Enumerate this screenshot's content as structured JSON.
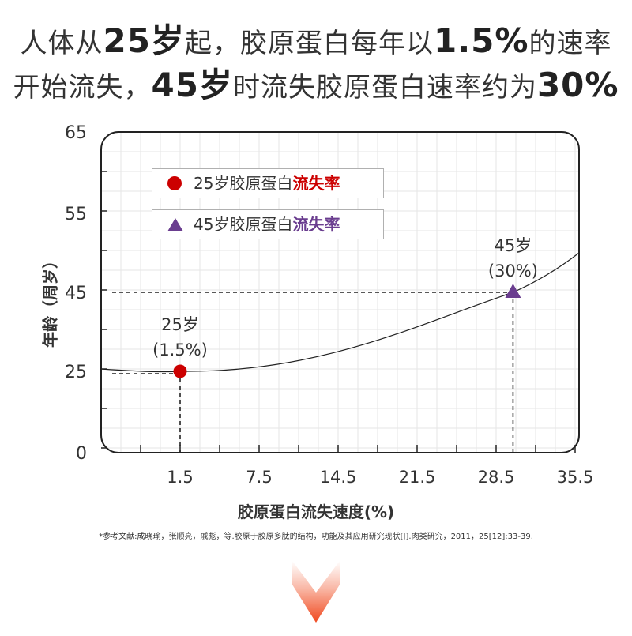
{
  "headline": {
    "line1": [
      "人体从",
      "25岁",
      "起，胶原蛋白每年以",
      "1.5%",
      "的速率"
    ],
    "line2": [
      "开始流失，",
      "45岁",
      "时流失胶原蛋白速率约为",
      "30%"
    ]
  },
  "legend": [
    {
      "prefix": "25岁胶原蛋白",
      "emphasis": "流失率",
      "color": "#cc0000",
      "marker": "circle"
    },
    {
      "prefix": "45岁胶原蛋白",
      "emphasis": "流失率",
      "color": "#6a3d8f",
      "marker": "triangle"
    }
  ],
  "reference": "*参考文献:成晓瑜，张顺亮，戚彪，等.胶原于胶原多肽的结构，功能及其应用研究现状[J].肉类研究，2011，25[12]:33-39.",
  "colors": {
    "curve": "#222222",
    "grid": "#e6e6e6",
    "frame": "#222222"
  },
  "chart_data": {
    "type": "line",
    "xlabel": "胶原蛋白流失速度(%)",
    "ylabel": "年龄（周岁）",
    "xticks": [
      "1.5",
      "7.5",
      "14.5",
      "21.5",
      "28.5",
      "35.5"
    ],
    "yticks": [
      "65",
      "55",
      "45",
      "25",
      "0"
    ],
    "grid": true,
    "legend_position": "top-left",
    "points": [
      {
        "x": 1.5,
        "y": 25,
        "label_top": "25岁",
        "label_bottom": "(1.5%)",
        "marker": "circle",
        "color": "#cc0000"
      },
      {
        "x": 30,
        "y": 45,
        "label_top": "45岁",
        "label_bottom": "(30%)",
        "marker": "triangle",
        "color": "#6a3d8f"
      }
    ]
  }
}
